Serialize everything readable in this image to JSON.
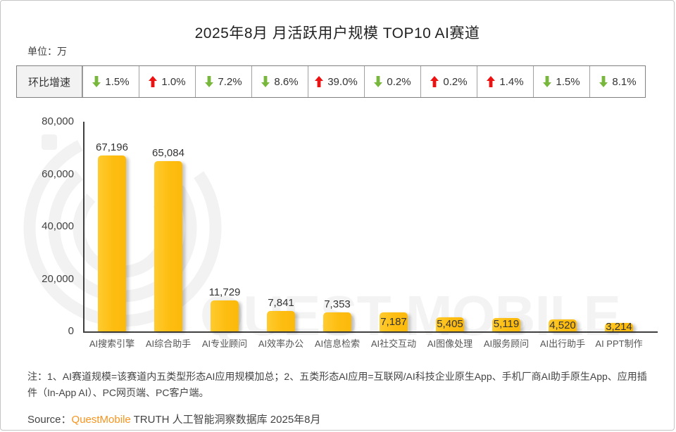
{
  "header": {
    "title": "2025年8月 月活跃用户规模 TOP10 AI赛道",
    "unit_label": "单位：万"
  },
  "growth": {
    "header_label": "环比增速",
    "up_color": "#ee1111",
    "down_color": "#77b73c",
    "cells": [
      {
        "direction": "down",
        "value": "1.5%"
      },
      {
        "direction": "up",
        "value": "1.0%"
      },
      {
        "direction": "down",
        "value": "7.2%"
      },
      {
        "direction": "down",
        "value": "8.6%"
      },
      {
        "direction": "up",
        "value": "39.0%"
      },
      {
        "direction": "down",
        "value": "0.2%"
      },
      {
        "direction": "up",
        "value": "0.2%"
      },
      {
        "direction": "up",
        "value": "1.4%"
      },
      {
        "direction": "down",
        "value": "1.5%"
      },
      {
        "direction": "down",
        "value": "8.1%"
      }
    ]
  },
  "chart_data": {
    "type": "bar",
    "title": "2025年8月 月活跃用户规模 TOP10 AI赛道",
    "unit": "万",
    "categories": [
      "AI搜索引擎",
      "AI综合助手",
      "AI专业顾问",
      "AI效率办公",
      "AI信息检索",
      "AI社交互动",
      "AI图像处理",
      "AI服务顾问",
      "AI出行助手",
      "AI PPT制作"
    ],
    "values": [
      67196,
      65084,
      11729,
      7841,
      7353,
      7187,
      5405,
      5119,
      4520,
      3214
    ],
    "value_labels": [
      "67,196",
      "65,084",
      "11,729",
      "7,841",
      "7,353",
      "7,187",
      "5,405",
      "5,119",
      "4,520",
      "3,214"
    ],
    "mom_growth": [
      "-1.5%",
      "+1.0%",
      "-7.2%",
      "-8.6%",
      "+39.0%",
      "-0.2%",
      "+0.2%",
      "+1.4%",
      "-1.5%",
      "-8.1%"
    ],
    "xlabel": "",
    "ylabel": "",
    "ylim": [
      0,
      80000
    ],
    "yticks": [
      0,
      20000,
      40000,
      60000,
      80000
    ],
    "ytick_labels": [
      "0",
      "20,000",
      "40,000",
      "60,000",
      "80,000"
    ],
    "grid": false,
    "legend": false,
    "bar_color": "#fdbd10",
    "label_inside": [
      false,
      false,
      false,
      false,
      false,
      true,
      true,
      true,
      true,
      true
    ]
  },
  "watermark": {
    "text": "QUEST MOBILE"
  },
  "footer": {
    "note": "注：1、AI赛道规模=该赛道内五类型形态AI应用规模加总；2、五类形态AI应用=互联网/AI科技企业原生App、手机厂商AI助手原生App、应用插件（In-App AI）、PC网页端、PC客户端。",
    "source_prefix": "Source：",
    "source_brand": "QuestMobile",
    "source_suffix": " TRUTH 人工智能洞察数据库 2025年8月"
  }
}
